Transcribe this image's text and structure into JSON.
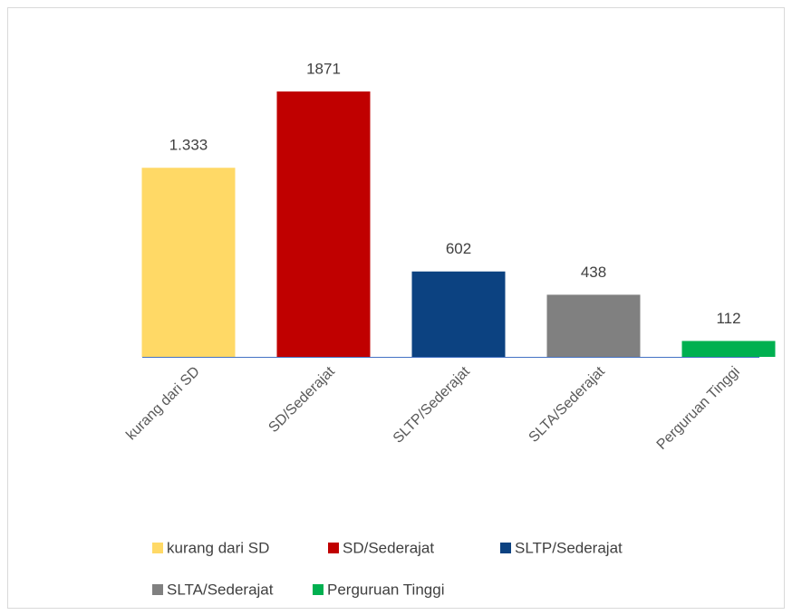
{
  "chart_data": {
    "type": "bar",
    "categories": [
      "kurang dari SD",
      "SD/Sederajat",
      "SLTP/Sederajat",
      "SLTA/Sederajat",
      "Perguruan Tinggi"
    ],
    "values": [
      1333,
      1871,
      602,
      438,
      112
    ],
    "value_labels": [
      "1.333",
      "1871",
      "602",
      "438",
      "112"
    ],
    "colors": [
      "#FFD966",
      "#C00000",
      "#0C4281",
      "#808080",
      "#00B050"
    ],
    "legend": "bottom"
  }
}
